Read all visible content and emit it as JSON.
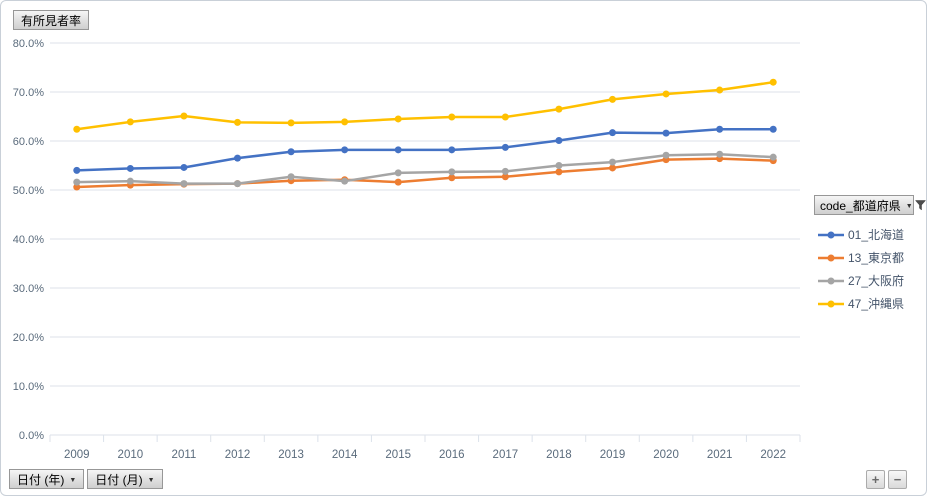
{
  "title_button": "有所見者率",
  "legend": {
    "header": "code_都道府県"
  },
  "axis_field_buttons": {
    "year": "日付 (年)",
    "month": "日付 (月)"
  },
  "zoom_buttons": {
    "expand": "+",
    "collapse": "−"
  },
  "icons": {
    "dropdown": "▼"
  },
  "colors": {
    "series_blue": "#4472C4",
    "series_orange": "#ED7D31",
    "series_gray": "#A5A5A5",
    "series_yellow": "#FFC000",
    "gridline": "#dce2ea",
    "axis_text": "#5a6b7c",
    "legend_text": "#44546a"
  },
  "chart_data": {
    "type": "line",
    "title": "有所見者率",
    "x": [
      "2009",
      "2010",
      "2011",
      "2012",
      "2013",
      "2014",
      "2015",
      "2016",
      "2017",
      "2018",
      "2019",
      "2020",
      "2021",
      "2022"
    ],
    "series": [
      {
        "name": "01_北海道",
        "color": "#4472C4",
        "values": [
          54.0,
          54.4,
          54.6,
          56.5,
          57.8,
          58.2,
          58.2,
          58.2,
          58.7,
          60.1,
          61.7,
          61.6,
          62.4,
          62.4
        ]
      },
      {
        "name": "13_東京都",
        "color": "#ED7D31",
        "values": [
          50.6,
          51.0,
          51.2,
          51.3,
          51.9,
          52.1,
          51.6,
          52.5,
          52.7,
          53.7,
          54.5,
          56.2,
          56.4,
          56.0
        ]
      },
      {
        "name": "27_大阪府",
        "color": "#A5A5A5",
        "values": [
          51.6,
          51.8,
          51.3,
          51.3,
          52.7,
          51.8,
          53.5,
          53.7,
          53.8,
          55.0,
          55.7,
          57.1,
          57.3,
          56.7
        ]
      },
      {
        "name": "47_沖縄県",
        "color": "#FFC000",
        "values": [
          62.4,
          63.9,
          65.1,
          63.8,
          63.7,
          63.9,
          64.5,
          64.9,
          64.9,
          66.5,
          68.5,
          69.6,
          70.4,
          72.0
        ]
      }
    ],
    "ylim": [
      0,
      80
    ],
    "ytick_step": 10,
    "ytick_labels": [
      "0.0%",
      "10.0%",
      "20.0%",
      "30.0%",
      "40.0%",
      "50.0%",
      "60.0%",
      "70.0%",
      "80.0%"
    ],
    "grid": true,
    "legend_position": "right"
  }
}
